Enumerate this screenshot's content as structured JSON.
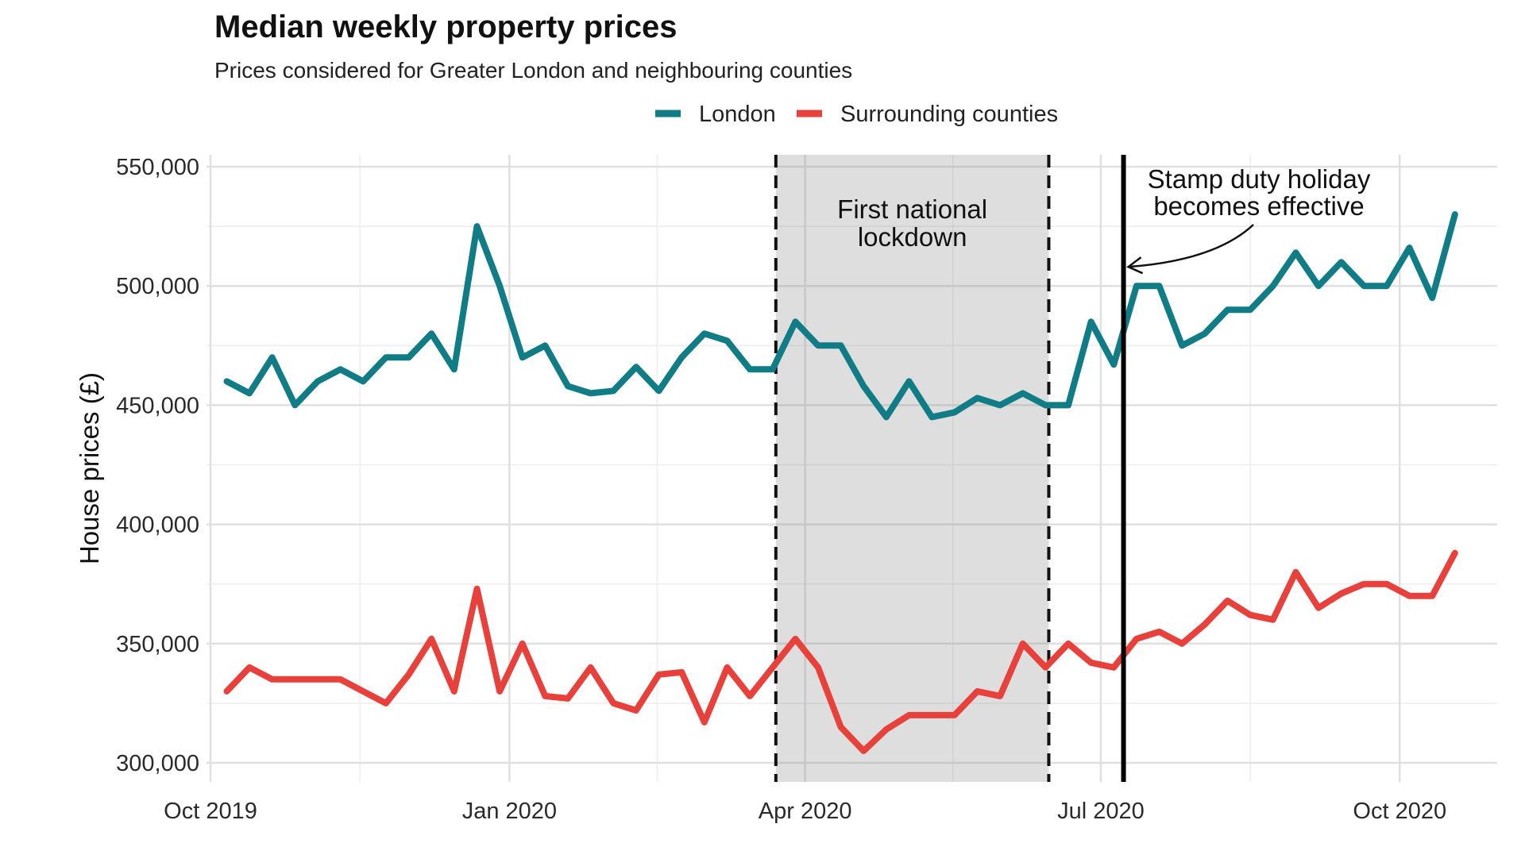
{
  "chart_data": {
    "type": "line",
    "title": "Median weekly property prices",
    "subtitle": "Prices considered for Greater London and neighbouring counties",
    "ylabel": "House prices (£)",
    "xlabel": "",
    "xlim": [
      "2019-10-01",
      "2020-10-31"
    ],
    "ylim": [
      292000,
      555000
    ],
    "x_ticks": [
      {
        "date": "2019-10-01",
        "label": "Oct 2019"
      },
      {
        "date": "2020-01-01",
        "label": "Jan 2020"
      },
      {
        "date": "2020-04-01",
        "label": "Apr 2020"
      },
      {
        "date": "2020-07-01",
        "label": "Jul 2020"
      },
      {
        "date": "2020-10-01",
        "label": "Oct 2020"
      }
    ],
    "y_ticks": [
      {
        "value": 300000,
        "label": "300,000"
      },
      {
        "value": 350000,
        "label": "350,000"
      },
      {
        "value": 400000,
        "label": "400,000"
      },
      {
        "value": 450000,
        "label": "450,000"
      },
      {
        "value": 500000,
        "label": "500,000"
      },
      {
        "value": 550000,
        "label": "550,000"
      }
    ],
    "grid": true,
    "legend_position": "top",
    "x": [
      "2019-10-06",
      "2019-10-13",
      "2019-10-20",
      "2019-10-27",
      "2019-11-03",
      "2019-11-10",
      "2019-11-17",
      "2019-11-24",
      "2019-12-01",
      "2019-12-08",
      "2019-12-15",
      "2019-12-22",
      "2019-12-29",
      "2020-01-05",
      "2020-01-12",
      "2020-01-19",
      "2020-01-26",
      "2020-02-02",
      "2020-02-09",
      "2020-02-16",
      "2020-02-23",
      "2020-03-01",
      "2020-03-08",
      "2020-03-15",
      "2020-03-22",
      "2020-03-29",
      "2020-04-05",
      "2020-04-12",
      "2020-04-19",
      "2020-04-26",
      "2020-05-03",
      "2020-05-10",
      "2020-05-17",
      "2020-05-24",
      "2020-05-31",
      "2020-06-07",
      "2020-06-14",
      "2020-06-21",
      "2020-06-28",
      "2020-07-05",
      "2020-07-12",
      "2020-07-19",
      "2020-07-26",
      "2020-08-02",
      "2020-08-09",
      "2020-08-16",
      "2020-08-23",
      "2020-08-30",
      "2020-09-06",
      "2020-09-13",
      "2020-09-20",
      "2020-09-27",
      "2020-10-04",
      "2020-10-11",
      "2020-10-18"
    ],
    "series": [
      {
        "name": "London",
        "color": "#0f7c86",
        "values": [
          460000,
          455000,
          470000,
          450000,
          460000,
          465000,
          460000,
          470000,
          470000,
          480000,
          465000,
          525000,
          500000,
          470000,
          475000,
          458000,
          455000,
          456000,
          466000,
          456000,
          470000,
          480000,
          477000,
          465000,
          465000,
          485000,
          475000,
          475000,
          458000,
          445000,
          460000,
          445000,
          447000,
          453000,
          450000,
          455000,
          450000,
          450000,
          485000,
          467000,
          500000,
          500000,
          475000,
          480000,
          490000,
          490000,
          500000,
          514000,
          500000,
          510000,
          500000,
          500000,
          516000,
          495000,
          530000
        ]
      },
      {
        "name": "Surrounding counties",
        "color": "#e8403a",
        "values": [
          330000,
          340000,
          335000,
          335000,
          335000,
          335000,
          330000,
          325000,
          337000,
          352000,
          330000,
          373000,
          330000,
          350000,
          328000,
          327000,
          340000,
          325000,
          322000,
          337000,
          338000,
          317000,
          340000,
          328000,
          340000,
          352000,
          340000,
          315000,
          305000,
          314000,
          320000,
          320000,
          320000,
          330000,
          328000,
          350000,
          340000,
          350000,
          342000,
          340000,
          352000,
          355000,
          350000,
          358000,
          368000,
          362000,
          360000,
          380000,
          365000,
          371000,
          375000,
          375000,
          370000,
          370000,
          388000
        ]
      }
    ],
    "annotations": [
      {
        "type": "shaded_region",
        "x_start": "2020-03-23",
        "x_end": "2020-06-15",
        "label_lines": [
          "First national",
          "lockdown"
        ]
      },
      {
        "type": "vertical_line",
        "x": "2020-07-08",
        "label_lines": [
          "Stamp duty holiday",
          "becomes effective"
        ]
      }
    ]
  }
}
